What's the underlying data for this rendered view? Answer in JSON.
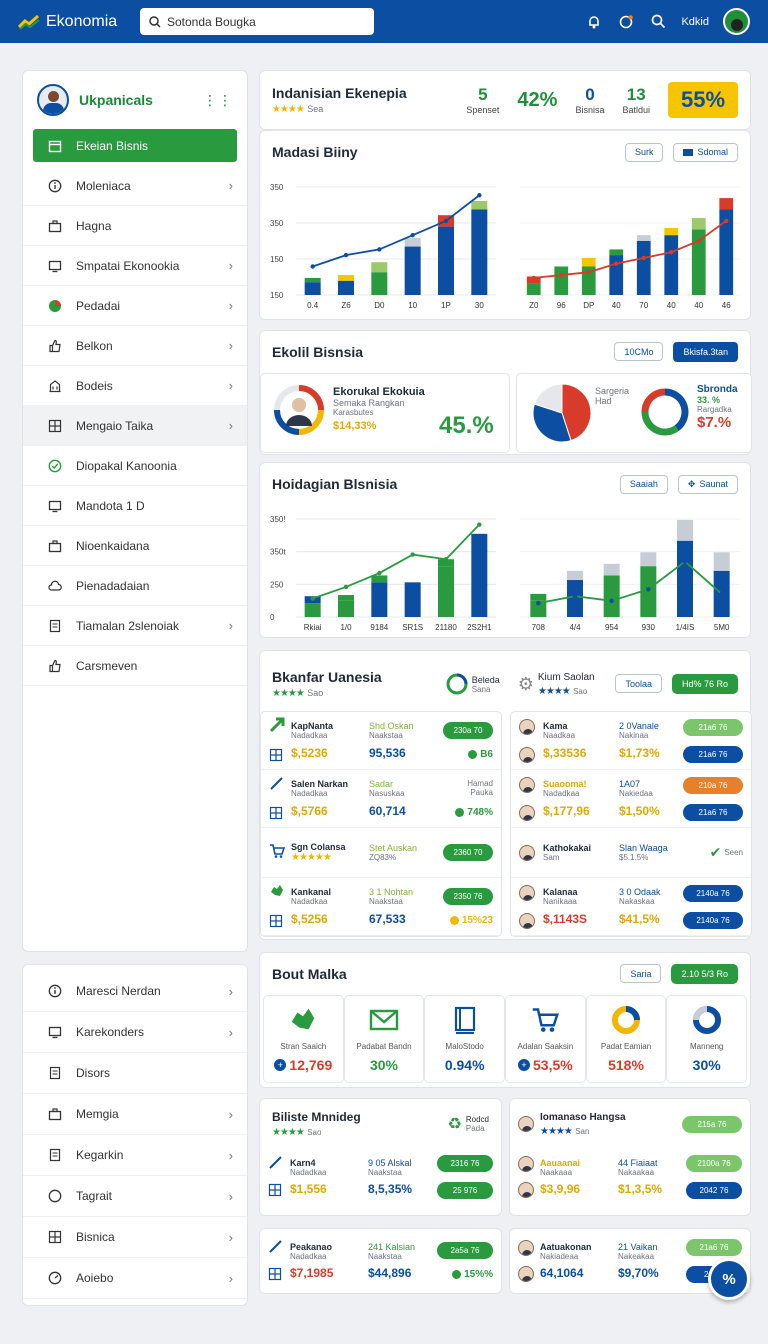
{
  "app": {
    "name": "Ekonomia",
    "user": "Kdkid"
  },
  "search": {
    "value": "Sotonda Bougka"
  },
  "sidebar": {
    "title": "Ukpanicals",
    "items": [
      {
        "label": "Ekeian Bisnis",
        "icon": "calendar-icon"
      },
      {
        "label": "Moleniaca",
        "icon": "info-icon"
      },
      {
        "label": "Hagna",
        "icon": "briefcase-icon"
      },
      {
        "label": "Smpatai Ekonookia",
        "icon": "monitor-icon"
      },
      {
        "label": "Pedadai",
        "icon": "chart-pie-icon"
      },
      {
        "label": "Belkon",
        "icon": "thumbs-up-icon"
      },
      {
        "label": "Bodeis",
        "icon": "building-icon"
      },
      {
        "label": "Mengaio Taika",
        "icon": "grid-icon"
      },
      {
        "label": "Diopakal Kanoonia",
        "icon": "check-circle-icon"
      },
      {
        "label": "Mandota 1 D",
        "icon": "monitor-icon"
      },
      {
        "label": "Nioenkaidana",
        "icon": "briefcase-icon"
      },
      {
        "label": "Pienadadaian",
        "icon": "cloud-icon"
      },
      {
        "label": "Tiamalan 2slenoiak",
        "icon": "document-icon"
      },
      {
        "label": "Carsmeven",
        "icon": "thumbs-up-icon"
      }
    ],
    "bottom_items": [
      {
        "label": "Maresci Nerdan",
        "icon": "info-icon"
      },
      {
        "label": "Karekonders",
        "icon": "monitor-icon"
      },
      {
        "label": "Disors",
        "icon": "document-icon"
      },
      {
        "label": "Memgia",
        "icon": "briefcase-icon"
      },
      {
        "label": "Kegarkin",
        "icon": "document-icon"
      },
      {
        "label": "Tagrait",
        "icon": "circle-icon"
      },
      {
        "label": "Bisnica",
        "icon": "grid-icon"
      },
      {
        "label": "Aoiebo",
        "icon": "gauge-icon"
      }
    ]
  },
  "summary": {
    "title": "Indanisian Ekenepia",
    "rating_note": "Sea",
    "kpis": [
      {
        "value": "5",
        "label": "Spenset",
        "color": "#1f8f3a"
      },
      {
        "value": "42%",
        "label": "",
        "color": "#1f8f3a"
      },
      {
        "value": "0",
        "label": "Bisnisa",
        "color": "#0b4ea2"
      },
      {
        "value": "13",
        "label": "Batldui",
        "color": "#1f8f3a"
      }
    ],
    "badge": "55%"
  },
  "chart1": {
    "title": "Madasi Biiny",
    "btn_a": "Surk",
    "btn_b": "Sdomal"
  },
  "chart_data": [
    {
      "type": "bar",
      "title": "Madasi Biiny",
      "categories": [
        "0.4",
        "Z6",
        "D0",
        "10",
        "1P",
        "30"
      ],
      "series": [
        {
          "values": [
            45,
            50,
            80,
            170,
            240,
            300
          ]
        },
        {
          "values": [
            15,
            20,
            35,
            30,
            40,
            30
          ]
        }
      ],
      "line": [
        100,
        140,
        160,
        210,
        260,
        350
      ],
      "yticks": [
        "350",
        "350",
        "150",
        "150"
      ],
      "ylim": [
        0,
        400
      ]
    },
    {
      "type": "bar",
      "categories": [
        "Z0",
        "96",
        "DP",
        "40",
        "70",
        "40",
        "40",
        "46"
      ],
      "series": [
        {
          "values": [
            40,
            70,
            100,
            140,
            190,
            210,
            230,
            300
          ]
        },
        {
          "values": [
            25,
            30,
            30,
            20,
            20,
            25,
            40,
            40
          ]
        }
      ],
      "line": [
        60,
        70,
        80,
        110,
        130,
        150,
        190,
        260
      ],
      "ylim": [
        0,
        400
      ]
    },
    {
      "type": "pie",
      "values": [
        45,
        35,
        20
      ],
      "colors": [
        "#d93b2b",
        "#0b4ea2",
        "#e5e7eb"
      ]
    },
    {
      "type": "pie",
      "values": [
        40,
        35,
        25
      ],
      "colors": [
        "#0b4ea2",
        "#2a9a3f",
        "#d93b2b"
      ]
    },
    {
      "type": "bar",
      "title": "Hoidagian Blsnisia",
      "categories": [
        "Rkiai",
        "1/0",
        "9184",
        "SR1S",
        "21180",
        "2S2H1"
      ],
      "series": [
        {
          "values": [
            60,
            70,
            150,
            150,
            220,
            360
          ]
        },
        {
          "values": [
            30,
            25,
            30,
            0,
            30,
            0
          ]
        }
      ],
      "line": [
        80,
        130,
        190,
        270,
        250,
        400
      ],
      "yticks": [
        "350!",
        "350t",
        "250",
        "0"
      ],
      "ylim": [
        0,
        450
      ]
    },
    {
      "type": "bar",
      "categories": [
        "708",
        "4/4",
        "954",
        "930",
        "1/4IS",
        "5M0"
      ],
      "series": [
        {
          "values": [
            70,
            160,
            180,
            220,
            330,
            200
          ]
        },
        {
          "values": [
            30,
            40,
            50,
            60,
            90,
            80
          ]
        }
      ],
      "line": [
        60,
        90,
        70,
        120,
        240,
        100
      ],
      "ylim": [
        0,
        450
      ]
    }
  ],
  "biz": {
    "title": "Ekolil Bisnsia",
    "btn_a": "10CMo",
    "btn_b": "Bkisfa.3tan",
    "person_title": "Ekorukal Ekokuia",
    "person_sub": "Semaka Rangkan",
    "person_note": "Karasbutes",
    "person_value": "$14,33%",
    "big_value": "45.%",
    "pie_label_a": "Sargeria",
    "pie_label_b": "Had",
    "donut_title": "Sbronda",
    "donut_v1": "33. %",
    "donut_v2": "Rargadka",
    "donut_v3": "$7.%"
  },
  "chart3": {
    "title": "Hoidagian Blsnisia",
    "btn_a": "Saaiah",
    "btn_b": "Saunat"
  },
  "table1": {
    "title": "Bkanfar Uanesia",
    "rating_note": "Sao",
    "badge_a_title": "Beleda",
    "badge_a_sub": "Sana",
    "badge_b_title": "Kium Saolan",
    "badge_b_sub": "Sao",
    "btn_a": "Toolaa",
    "btn_b": "Hd% 76 Ro",
    "left_rows": [
      {
        "icon": "arrow-icon",
        "name": "KapNanta",
        "sub": "Nadadkaa",
        "value": "$,5236",
        "c2": "Shd Oskan",
        "c2sub": "Naakstaa",
        "c3": "95,536",
        "pill": "230a 70",
        "extra": "B6",
        "value_color": "#2a9a3f"
      },
      {
        "icon": "pen-icon",
        "name": "Salen Narkan",
        "sub": "Nadadkaa",
        "value": "$,5766",
        "c2": "Sadar",
        "c2sub": "Nasuskaa",
        "c3": "60,714",
        "pill": "",
        "extra": "748%",
        "value_color": "#2a9a3f"
      },
      {
        "icon": "cart-icon",
        "name": "Sgn Colansa",
        "sub": "",
        "value": "",
        "c2": "Stet Auskan",
        "c2sub": "ZQ83%",
        "c3": "",
        "pill": "2360 70",
        "extra": "",
        "value_color": "#2a9a3f"
      },
      {
        "icon": "map-icon",
        "name": "Kankanal",
        "sub": "Nadadkaa",
        "value": "$,5256",
        "c2": "3 1 Nohtan",
        "c2sub": "Naakstaa",
        "c3": "67,533",
        "pill": "2350 76",
        "extra": "15%23",
        "value_color": "#2a9a3f"
      }
    ],
    "mid_note_a": "Hamad",
    "mid_note_b": "Pauka",
    "right_rows": [
      {
        "name": "Kama",
        "sub": "Naadkaa",
        "value": "$,33536",
        "c2": "2 0Vanale",
        "c2sub": "Nakinaa",
        "c3": "$1,73%",
        "pill_a": "21a6 76",
        "pill_b": "21a6 76"
      },
      {
        "name": "Suaooma!",
        "sub": "Nadadkaa",
        "value": "$,177,96",
        "c2": "1A07",
        "c2sub": "Nakiedaa",
        "c3": "$1,50%",
        "pill_a": "210a 76",
        "pill_b": "21a6 76"
      },
      {
        "name": "Kathokakai",
        "sub": "Sam",
        "value": "",
        "c2": "Slan Waaga",
        "c2sub": "$5.1.5%",
        "c3": "",
        "pill_a": "Seen",
        "pill_b": ""
      },
      {
        "name": "Kalanaa",
        "sub": "Nanikaaa",
        "value": "$,1143S",
        "c2": "3 0 Odaak",
        "c2sub": "Nakaskaa",
        "c3": "$41,5%",
        "pill_a": "2140a 76",
        "pill_b": "2140a 76"
      }
    ]
  },
  "tiles": {
    "title": "Bout Malka",
    "btn_a": "Saria",
    "btn_b": "2.10 5/3 Ro",
    "items": [
      {
        "label": "Stran Saaich",
        "value": "12,769",
        "color": "#d93b2b",
        "icon": "map-icon"
      },
      {
        "label": "Padabat Bandn",
        "value": "30%",
        "color": "#2a9a3f",
        "icon": "mail-icon"
      },
      {
        "label": "MaloStodo",
        "value": "0.94%",
        "color": "#0b4ea2",
        "icon": "book-icon"
      },
      {
        "label": "Adalan Saaksin",
        "value": "53,5%",
        "color": "#d93b2b",
        "icon": "cart-icon"
      },
      {
        "label": "Padat Eamian",
        "value": "518%",
        "color": "#d93b2b",
        "icon": "chart-pie-icon"
      },
      {
        "label": "Manneng",
        "value": "30%",
        "color": "#0b4ea2",
        "icon": "gauge-icon"
      }
    ]
  },
  "lower_left": {
    "title": "Biliste Mnnideg",
    "rating_note": "Sao",
    "badge_title": "Rodcd",
    "badge_sub": "Pada",
    "rows": [
      {
        "name": "Karn4",
        "sub": "Nadadkaa",
        "value": "$1,556",
        "c2": "9 05 Alskal",
        "c2sub": "Naakstaa",
        "c3": "8,5,35%",
        "pill_a": "2316 76",
        "pill_b": "25 976"
      }
    ]
  },
  "lower_right": {
    "title": "Iomanaso Hangsa",
    "rating_note": "San",
    "pill": "215a 76",
    "rows": [
      {
        "name": "Aauaanai",
        "sub": "Naakaaa",
        "value": "$3,9,96",
        "c2": "44 Fiaiaat",
        "c2sub": "Nakaakaa",
        "c3": "$1,3,5%",
        "pill_a": "2100a 76",
        "pill_b": "2042 76"
      }
    ]
  },
  "bottom_left": {
    "rows": [
      {
        "name": "Peakanao",
        "sub": "Nadadkaa",
        "value": "$7,1985",
        "c2": "241 Kalsian",
        "c2sub": "Naakstaa",
        "c3": "$44,896",
        "pill": "2a5a 76",
        "extra": "15%%"
      }
    ]
  },
  "bottom_right": {
    "rows": [
      {
        "name": "Aatuakonan",
        "sub": "Nakiadeaa",
        "value": "64,1064",
        "c2": "21 Vaikan",
        "c2sub": "Nakeakaa",
        "c3": "$9,70%",
        "pill_a": "21a6 76",
        "pill_b": "210 7"
      }
    ]
  },
  "fab": {
    "label": "%"
  },
  "colors": {
    "primary": "#0b4ea2",
    "green": "#2a9a3f",
    "red": "#d93b2b",
    "yellow": "#f7c400"
  }
}
